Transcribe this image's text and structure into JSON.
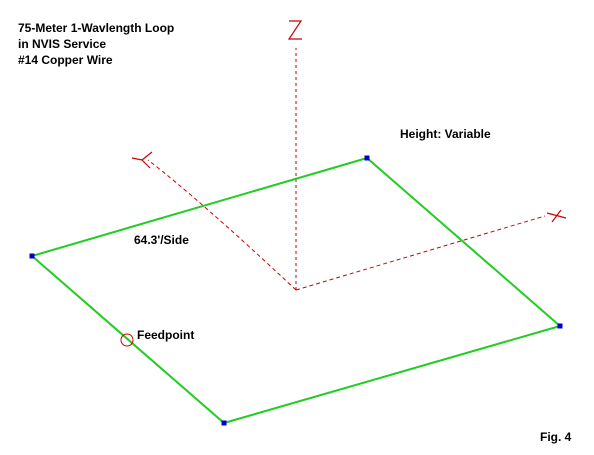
{
  "title_lines": [
    "75-Meter 1-Wavlength Loop",
    "in NVIS Service",
    "#14 Copper Wire"
  ],
  "labels": {
    "height": "Height:  Variable",
    "side_length": "64.3'/Side",
    "feedpoint": "Feedpoint",
    "figure": "Fig. 4"
  },
  "axes": [
    "Z",
    "Y",
    "X"
  ],
  "colors": {
    "wire": "#22cc22",
    "axis": "#cc0000",
    "corner_marker": "#0000cc",
    "feedpoint_marker": "#cc0000",
    "text": "#000000"
  }
}
